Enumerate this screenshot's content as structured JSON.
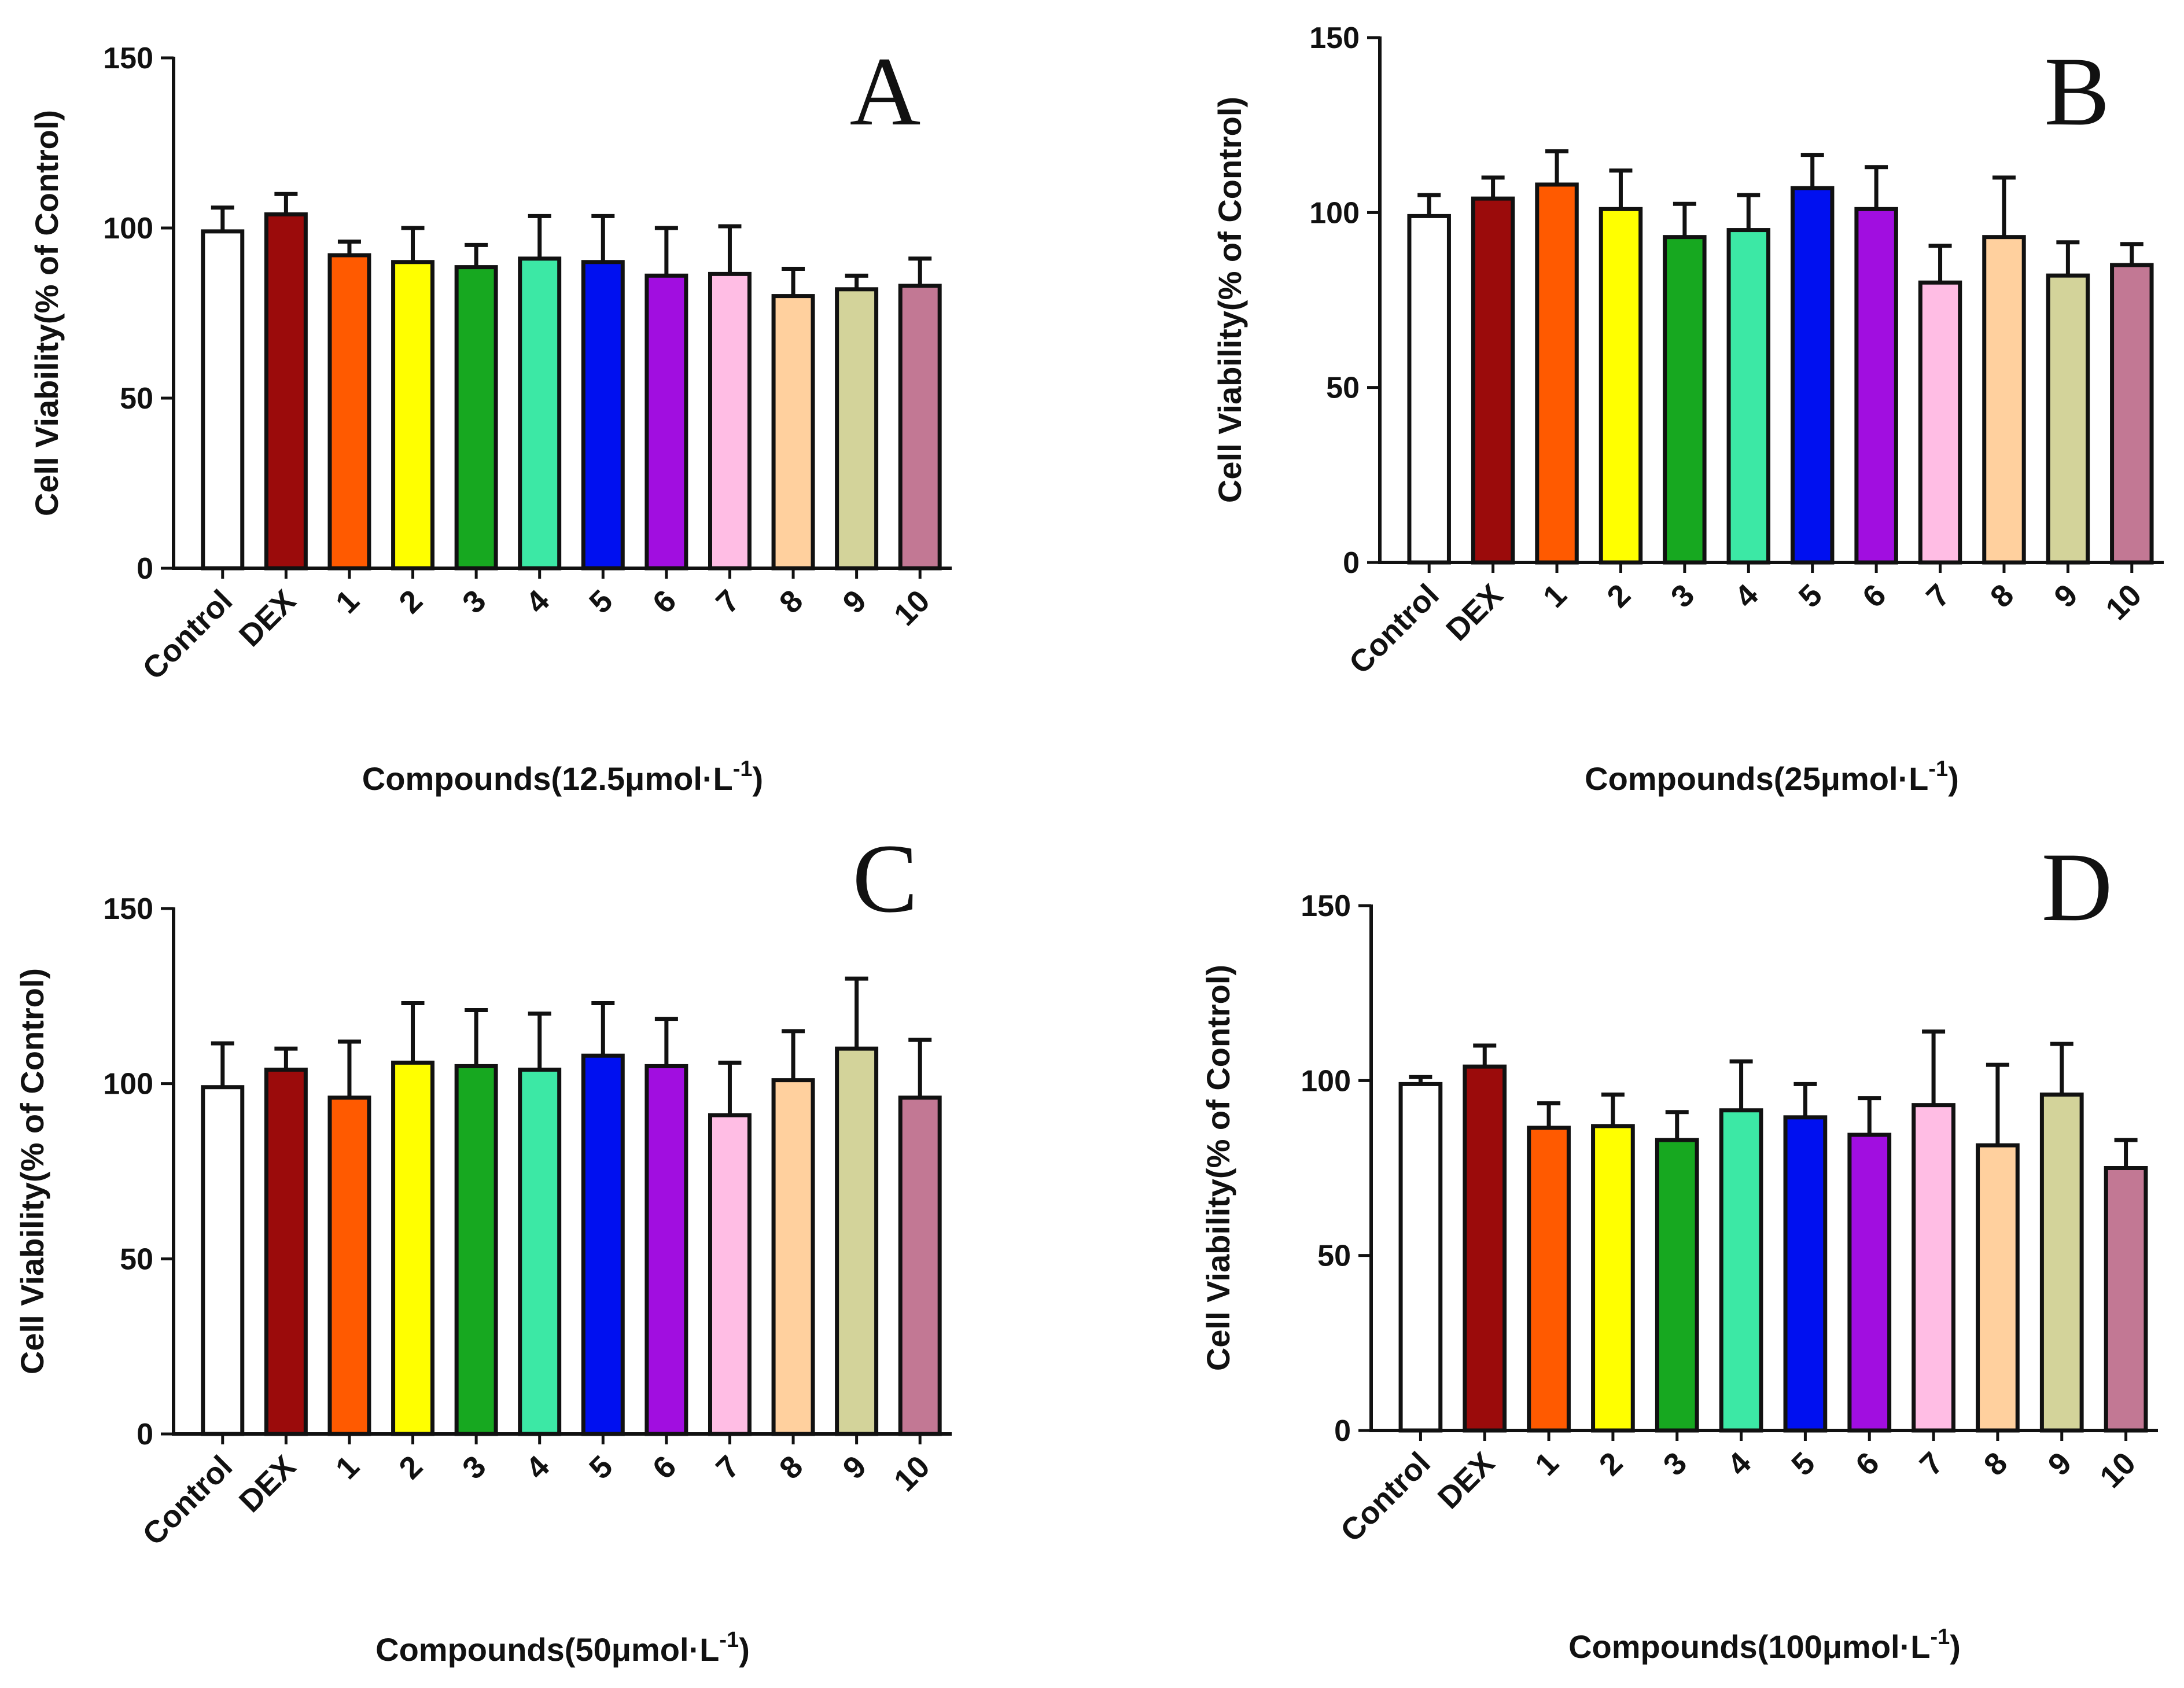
{
  "chart_data": [
    {
      "type": "bar",
      "panel": "A",
      "categories": [
        "Control",
        "DEX",
        "1",
        "2",
        "3",
        "4",
        "5",
        "6",
        "7",
        "8",
        "9",
        "10"
      ],
      "values": [
        99,
        104,
        92,
        90,
        88.5,
        91,
        90,
        86,
        86.5,
        80,
        82,
        83
      ],
      "errors": [
        7,
        6,
        4,
        10,
        6.5,
        12.5,
        13.5,
        14,
        14,
        8,
        4,
        8
      ],
      "xlabel": "Compounds(12.5μmol·L",
      "xlabel_sup": "-1",
      "xlabel_end": ")",
      "ylabel": "Cell Viability(% of Control)",
      "ylim": [
        0,
        150
      ],
      "yticks": [
        "0",
        "50",
        "100",
        "150"
      ]
    },
    {
      "type": "bar",
      "panel": "B",
      "categories": [
        "Control",
        "DEX",
        "1",
        "2",
        "3",
        "4",
        "5",
        "6",
        "7",
        "8",
        "9",
        "10"
      ],
      "values": [
        99,
        104,
        108,
        101,
        93,
        95,
        107,
        101,
        80,
        93,
        82,
        85
      ],
      "errors": [
        6,
        6,
        9.5,
        11,
        9.5,
        10,
        9.5,
        12,
        10.5,
        17,
        9.5,
        6
      ],
      "xlabel": "Compounds(25μmol·L",
      "xlabel_sup": "-1",
      "xlabel_end": ")",
      "ylabel": "Cell Viability(% of Control)",
      "ylim": [
        0,
        150
      ],
      "yticks": [
        "0",
        "50",
        "100",
        "150"
      ]
    },
    {
      "type": "bar",
      "panel": "C",
      "categories": [
        "Control",
        "DEX",
        "1",
        "2",
        "3",
        "4",
        "5",
        "6",
        "7",
        "8",
        "9",
        "10"
      ],
      "values": [
        99,
        104,
        96,
        106,
        105,
        104,
        108,
        105,
        91,
        101,
        110,
        96
      ],
      "errors": [
        12.5,
        6,
        16,
        17,
        16,
        16,
        15,
        13.5,
        15,
        14,
        20,
        16.5
      ],
      "xlabel": "Compounds(50μmol·L",
      "xlabel_sup": "-1",
      "xlabel_end": ")",
      "ylabel": "Cell Viability(% of Control)",
      "ylim": [
        0,
        150
      ],
      "yticks": [
        "0",
        "50",
        "100",
        "150"
      ]
    },
    {
      "type": "bar",
      "panel": "D",
      "categories": [
        "Control",
        "DEX",
        "1",
        "2",
        "3",
        "4",
        "5",
        "6",
        "7",
        "8",
        "9",
        "10"
      ],
      "values": [
        99,
        104,
        86.5,
        87,
        83,
        91.5,
        89.5,
        84.5,
        93,
        81.5,
        96,
        75
      ],
      "errors": [
        2,
        6,
        7,
        9,
        8,
        14,
        9.5,
        10.5,
        21,
        23,
        14.5,
        8
      ],
      "xlabel": "Compounds(100μmol·L",
      "xlabel_sup": "-1",
      "xlabel_end": ")",
      "ylabel": "Cell Viability(% of Control)",
      "ylim": [
        0,
        150
      ],
      "yticks": [
        "0",
        "50",
        "100",
        "150"
      ]
    }
  ],
  "colors": [
    "#ffffff",
    "#9b0b0b",
    "#ff5a00",
    "#ffff00",
    "#17a820",
    "#3ce8a5",
    "#0010f0",
    "#a10ee0",
    "#ffbde4",
    "#ffd09e",
    "#d3d39a",
    "#c27894"
  ],
  "axis_color": "#111111"
}
